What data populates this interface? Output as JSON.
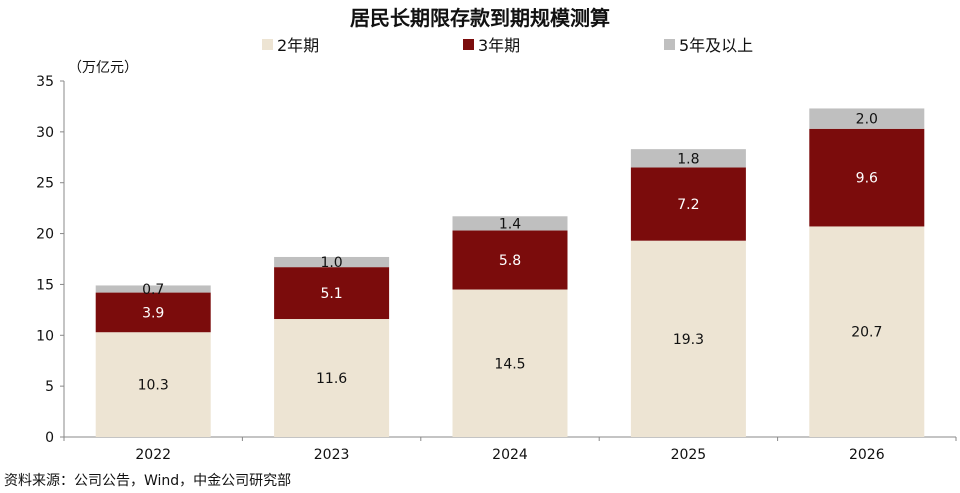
{
  "title": "居民长期限存款到期规模测算",
  "unit_label": "（万亿元）",
  "source_note": "资料来源：公司公告，Wind，中金公司研究部",
  "legend": [
    {
      "label": "2年期",
      "color": "#ede4d3"
    },
    {
      "label": "3年期",
      "color": "#7b0c0c"
    },
    {
      "label": "5年及以上",
      "color": "#bfbfbf"
    }
  ],
  "chart_data": {
    "type": "bar",
    "stacked": true,
    "title": "居民长期限存款到期规模测算",
    "ylabel": "（万亿元）",
    "xlabel": "",
    "ylim": [
      0,
      35
    ],
    "yticks": [
      0,
      5,
      10,
      15,
      20,
      25,
      30,
      35
    ],
    "categories": [
      "2022",
      "2023",
      "2024",
      "2025",
      "2026"
    ],
    "series": [
      {
        "name": "2年期",
        "color": "#ede4d3",
        "label_color": "#111111",
        "values": [
          10.3,
          11.6,
          14.5,
          19.3,
          20.7
        ]
      },
      {
        "name": "3年期",
        "color": "#7b0c0c",
        "label_color": "#ffffff",
        "values": [
          3.9,
          5.1,
          5.8,
          7.2,
          9.6
        ]
      },
      {
        "name": "5年及以上",
        "color": "#bfbfbf",
        "label_color": "#111111",
        "values": [
          0.7,
          1.0,
          1.4,
          1.8,
          2.0
        ]
      }
    ],
    "value_labels": [
      [
        "10.3",
        "11.6",
        "14.5",
        "19.3",
        "20.7"
      ],
      [
        "3.9",
        "5.1",
        "5.8",
        "7.2",
        "9.6"
      ],
      [
        "0.7",
        "1.0",
        "1.4",
        "1.8",
        "2.0"
      ]
    ],
    "grid": false,
    "legend_position": "top"
  }
}
